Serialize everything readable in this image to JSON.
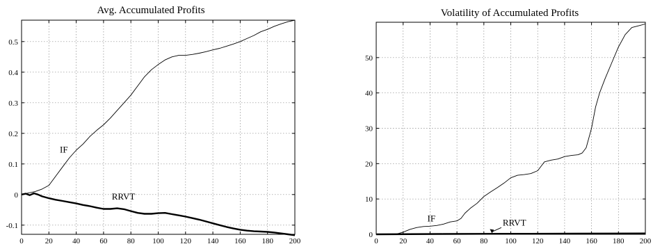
{
  "chart_data": [
    {
      "type": "line",
      "title": "Avg. Accumulated Profits",
      "xlabel": "",
      "ylabel": "",
      "xlim": [
        0,
        200
      ],
      "ylim": [
        -0.13,
        0.57
      ],
      "xticks": [
        0,
        20,
        40,
        60,
        80,
        100,
        120,
        140,
        160,
        180,
        200
      ],
      "yticks": [
        -0.1,
        0,
        0.1,
        0.2,
        0.3,
        0.4,
        0.5
      ],
      "ytick_labels": [
        "-0.1",
        "0",
        "0.1",
        "0.2",
        "0.3",
        "0.4",
        "0.5"
      ],
      "grid": true,
      "annotations": [
        {
          "text": "IF",
          "x": 28,
          "y": 0.137
        },
        {
          "text": "RRVT",
          "x": 66,
          "y": -0.016
        }
      ],
      "series": [
        {
          "label": "IF",
          "line_width": "thin",
          "x": [
            0,
            5,
            10,
            15,
            20,
            25,
            30,
            35,
            40,
            45,
            50,
            55,
            60,
            65,
            70,
            75,
            80,
            85,
            90,
            95,
            100,
            105,
            110,
            115,
            120,
            125,
            130,
            135,
            140,
            145,
            150,
            155,
            160,
            165,
            170,
            175,
            180,
            185,
            190,
            195,
            200
          ],
          "values": [
            0,
            0.005,
            0.01,
            0.018,
            0.03,
            0.06,
            0.09,
            0.12,
            0.145,
            0.165,
            0.19,
            0.21,
            0.228,
            0.25,
            0.275,
            0.3,
            0.325,
            0.355,
            0.385,
            0.408,
            0.425,
            0.44,
            0.45,
            0.455,
            0.455,
            0.458,
            0.462,
            0.467,
            0.473,
            0.478,
            0.485,
            0.492,
            0.5,
            0.51,
            0.52,
            0.532,
            0.54,
            0.55,
            0.558,
            0.565,
            0.57
          ]
        },
        {
          "label": "RRVT",
          "line_width": "thick",
          "x": [
            0,
            3,
            6,
            9,
            12,
            15,
            20,
            25,
            30,
            35,
            40,
            45,
            50,
            55,
            60,
            65,
            70,
            75,
            80,
            85,
            90,
            95,
            100,
            105,
            110,
            115,
            120,
            125,
            130,
            135,
            140,
            145,
            150,
            155,
            160,
            165,
            170,
            175,
            180,
            185,
            190,
            195,
            200
          ],
          "values": [
            0,
            0.003,
            -0.002,
            0.004,
            0.0,
            -0.006,
            -0.012,
            -0.017,
            -0.021,
            -0.025,
            -0.029,
            -0.034,
            -0.038,
            -0.043,
            -0.047,
            -0.047,
            -0.045,
            -0.048,
            -0.054,
            -0.06,
            -0.063,
            -0.063,
            -0.061,
            -0.06,
            -0.064,
            -0.068,
            -0.072,
            -0.077,
            -0.082,
            -0.088,
            -0.094,
            -0.1,
            -0.106,
            -0.111,
            -0.115,
            -0.118,
            -0.12,
            -0.121,
            -0.122,
            -0.124,
            -0.127,
            -0.13,
            -0.133
          ]
        }
      ]
    },
    {
      "type": "line",
      "title": "Volatility of Accumulated Profits",
      "xlabel": "",
      "ylabel": "",
      "xlim": [
        0,
        200
      ],
      "ylim": [
        0,
        60
      ],
      "xticks": [
        0,
        20,
        40,
        60,
        80,
        100,
        120,
        140,
        160,
        180,
        200
      ],
      "yticks": [
        0,
        10,
        20,
        30,
        40,
        50
      ],
      "ytick_labels": [
        "0",
        "10",
        "20",
        "30",
        "40",
        "50"
      ],
      "grid": true,
      "annotations": [
        {
          "text": "IF",
          "x": 38,
          "y": 3.6
        },
        {
          "text": "RRVT",
          "x": 94,
          "y": 2.5,
          "arrow_to": [
            86,
            0.3
          ]
        }
      ],
      "series": [
        {
          "label": "IF",
          "line_width": "thin",
          "x": [
            0,
            10,
            15,
            20,
            25,
            30,
            35,
            40,
            45,
            50,
            55,
            60,
            63,
            66,
            70,
            75,
            80,
            85,
            90,
            95,
            100,
            105,
            110,
            115,
            120,
            123,
            125,
            130,
            135,
            140,
            145,
            150,
            153,
            156,
            160,
            163,
            166,
            170,
            175,
            180,
            185,
            190,
            195,
            200
          ],
          "values": [
            0,
            0.05,
            0.1,
            0.6,
            1.4,
            1.9,
            2.2,
            2.3,
            2.5,
            2.9,
            3.5,
            3.8,
            4.5,
            6.0,
            7.4,
            8.8,
            10.7,
            12.0,
            13.2,
            14.5,
            16.0,
            16.7,
            16.9,
            17.2,
            18.0,
            19.5,
            20.5,
            21.0,
            21.3,
            22.0,
            22.3,
            22.5,
            23.0,
            24.5,
            30.0,
            36.0,
            40.0,
            44.0,
            48.5,
            53.0,
            56.5,
            58.5,
            59.0,
            59.5
          ]
        },
        {
          "label": "RRVT",
          "line_width": "thick",
          "x": [
            0,
            50,
            100,
            150,
            200
          ],
          "values": [
            0,
            0.1,
            0.15,
            0.2,
            0.25
          ]
        }
      ]
    }
  ]
}
